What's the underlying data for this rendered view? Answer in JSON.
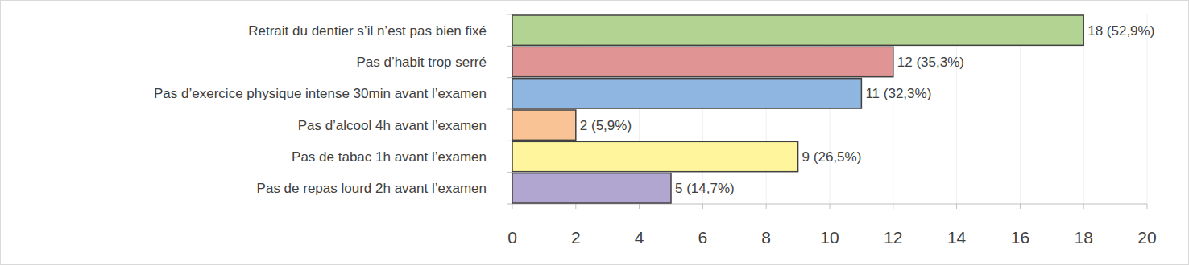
{
  "chart_data": {
    "type": "bar",
    "orientation": "horizontal",
    "categories": [
      "Retrait du dentier s’il n’est pas bien fixé",
      "Pas d’habit trop serré",
      "Pas d’exercice physique intense 30min avant l’examen",
      "Pas d’alcool 4h avant l’examen",
      "Pas de tabac 1h avant l’examen",
      "Pas de repas lourd 2h avant l’examen"
    ],
    "values": [
      18,
      12,
      11,
      2,
      9,
      5
    ],
    "value_labels": [
      "18 (52,9%)",
      "12 (35,3%)",
      "11 (32,3%)",
      "2 (5,9%)",
      "9 (26,5%)",
      "5 (14,7%)"
    ],
    "colors": [
      "#b3d393",
      "#e09594",
      "#8fb6e0",
      "#fac396",
      "#fff59d",
      "#b0a6cf"
    ],
    "xlim": [
      0,
      20
    ],
    "xticks": [
      0,
      2,
      4,
      6,
      8,
      10,
      12,
      14,
      16,
      18,
      20
    ],
    "grid": true,
    "data_labels": true
  }
}
